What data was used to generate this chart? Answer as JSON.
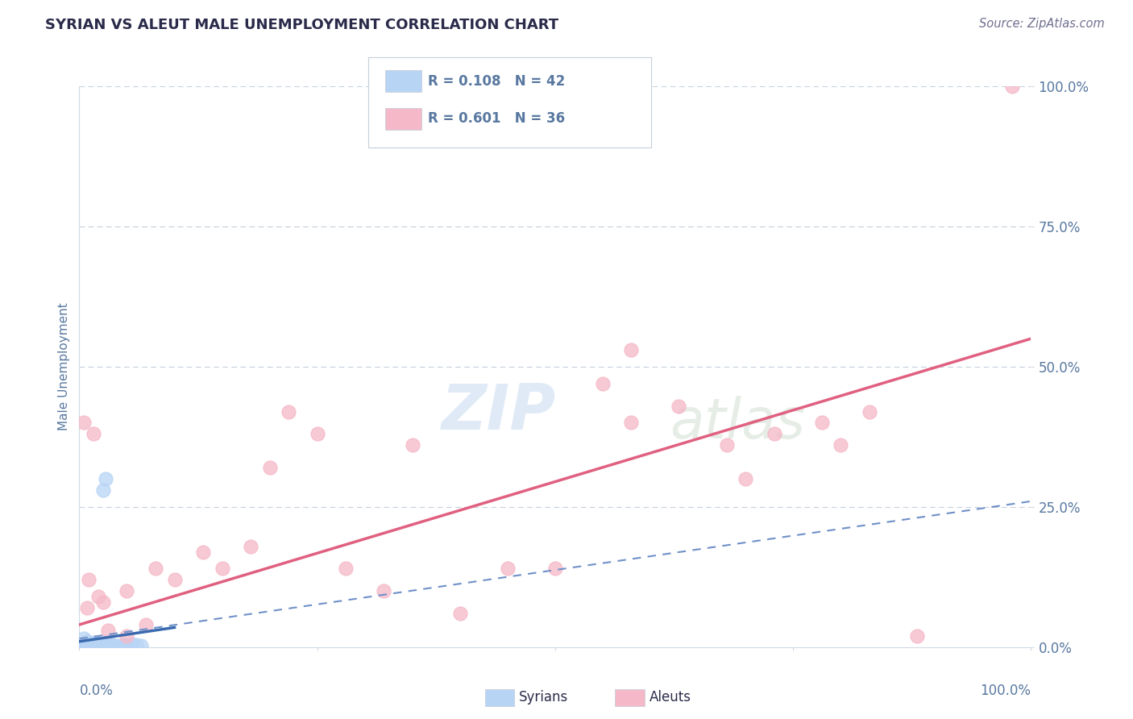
{
  "title": "SYRIAN VS ALEUT MALE UNEMPLOYMENT CORRELATION CHART",
  "source": "Source: ZipAtlas.com",
  "ylabel": "Male Unemployment",
  "ytick_labels": [
    "0.0%",
    "25.0%",
    "50.0%",
    "75.0%",
    "100.0%"
  ],
  "ytick_values": [
    0,
    25,
    50,
    75,
    100
  ],
  "legend_items": [
    {
      "label": "R = 0.108   N = 42",
      "color": "#b8d4f5"
    },
    {
      "label": "R = 0.601   N = 36",
      "color": "#f5b8c8"
    }
  ],
  "legend_series": [
    {
      "name": "Syrians",
      "color": "#b8d4f5"
    },
    {
      "name": "Aleuts",
      "color": "#f5b8c8"
    }
  ],
  "syrian_points": [
    [
      0.2,
      0.3
    ],
    [
      0.3,
      0.2
    ],
    [
      0.4,
      0.5
    ],
    [
      0.5,
      0.3
    ],
    [
      0.6,
      0.8
    ],
    [
      0.7,
      0.4
    ],
    [
      0.8,
      0.6
    ],
    [
      0.9,
      0.3
    ],
    [
      1.0,
      0.5
    ],
    [
      1.1,
      0.4
    ],
    [
      1.2,
      0.7
    ],
    [
      1.3,
      0.3
    ],
    [
      1.4,
      0.5
    ],
    [
      1.5,
      0.4
    ],
    [
      1.6,
      0.6
    ],
    [
      1.7,
      0.5
    ],
    [
      1.8,
      0.4
    ],
    [
      1.9,
      0.3
    ],
    [
      2.0,
      0.5
    ],
    [
      2.1,
      0.4
    ],
    [
      2.2,
      0.6
    ],
    [
      2.3,
      0.3
    ],
    [
      2.4,
      0.5
    ],
    [
      2.5,
      0.4
    ],
    [
      2.6,
      0.3
    ],
    [
      2.7,
      0.5
    ],
    [
      2.8,
      0.4
    ],
    [
      3.0,
      0.3
    ],
    [
      3.2,
      0.5
    ],
    [
      3.5,
      0.4
    ],
    [
      4.0,
      0.3
    ],
    [
      4.5,
      0.4
    ],
    [
      5.0,
      0.3
    ],
    [
      5.5,
      0.5
    ],
    [
      6.0,
      0.4
    ],
    [
      6.5,
      0.3
    ],
    [
      2.5,
      28.0
    ],
    [
      2.8,
      30.0
    ],
    [
      0.5,
      1.5
    ],
    [
      0.8,
      1.0
    ],
    [
      1.5,
      0.8
    ],
    [
      3.0,
      0.6
    ]
  ],
  "aleut_points": [
    [
      0.5,
      40.0
    ],
    [
      1.5,
      38.0
    ],
    [
      1.0,
      12.0
    ],
    [
      2.5,
      8.0
    ],
    [
      5.0,
      10.0
    ],
    [
      8.0,
      14.0
    ],
    [
      10.0,
      12.0
    ],
    [
      13.0,
      17.0
    ],
    [
      15.0,
      14.0
    ],
    [
      18.0,
      18.0
    ],
    [
      20.0,
      32.0
    ],
    [
      22.0,
      42.0
    ],
    [
      25.0,
      38.0
    ],
    [
      28.0,
      14.0
    ],
    [
      32.0,
      10.0
    ],
    [
      35.0,
      36.0
    ],
    [
      40.0,
      6.0
    ],
    [
      45.0,
      14.0
    ],
    [
      50.0,
      14.0
    ],
    [
      55.0,
      47.0
    ],
    [
      58.0,
      40.0
    ],
    [
      63.0,
      43.0
    ],
    [
      68.0,
      36.0
    ],
    [
      70.0,
      30.0
    ],
    [
      73.0,
      38.0
    ],
    [
      78.0,
      40.0
    ],
    [
      80.0,
      36.0
    ],
    [
      83.0,
      42.0
    ],
    [
      88.0,
      2.0
    ],
    [
      3.0,
      3.0
    ],
    [
      5.0,
      2.0
    ],
    [
      7.0,
      4.0
    ],
    [
      0.8,
      7.0
    ],
    [
      2.0,
      9.0
    ],
    [
      98.0,
      100.0
    ],
    [
      58.0,
      53.0
    ]
  ],
  "syrian_line": {
    "x0": 0,
    "x1": 10,
    "y0": 1.0,
    "y1": 3.5,
    "color": "#3a6ab0",
    "lw": 2.5
  },
  "aleut_line": {
    "x0": 0,
    "x1": 100,
    "y0": 4.0,
    "y1": 55.0,
    "color": "#e06080",
    "lw": 2.5
  },
  "dashed_line": {
    "x0": 0,
    "x1": 100,
    "y0": 1.5,
    "y1": 26.0,
    "color": "#7090c8",
    "lw": 1.5
  },
  "bg_color": "#ffffff",
  "title_color": "#2a2a4a",
  "axis_label_color": "#5878a0",
  "grid_color": "#c5d0dc",
  "xlim": [
    0,
    100
  ],
  "ylim": [
    0,
    100
  ]
}
